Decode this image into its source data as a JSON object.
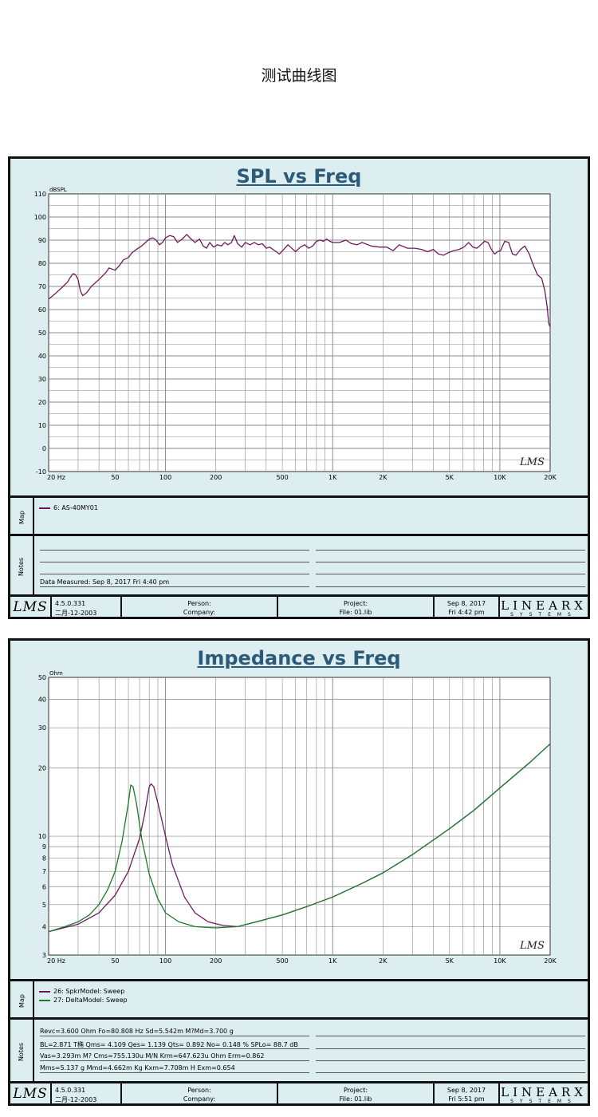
{
  "page_title": "测试曲线图",
  "colors": {
    "panel_bg": "#dceeef",
    "plot_bg": "#ffffff",
    "grid": "#8a8a8a",
    "title": "#2e5a7a",
    "purple": "#6d1a5c",
    "green": "#1a7a2a"
  },
  "spl": {
    "map_label": "Map",
    "notes_label": "Notes",
    "map_entries": [
      {
        "label": "6: AS-40MY01",
        "color": "#6d1a5c"
      }
    ],
    "notes": [
      "Data Measured: Sep  8, 2017  Fri  4:40 pm"
    ],
    "footer": {
      "version": "4.5.0.331",
      "date": "二月-12-2003",
      "person": "Person:",
      "company": "Company:",
      "project": "Project:",
      "file": "File: 01.lib",
      "datetime1": "Sep  8, 2017",
      "datetime2": "Fri  4:42 pm",
      "logo": "LMS",
      "brand": "LINEARX",
      "brand_sub": "SYSTEMS"
    }
  },
  "imp": {
    "map_label": "Map",
    "notes_label": "Notes",
    "map_entries": [
      {
        "label": "26: SpkrModel: Sweep",
        "color": "#6d1a5c"
      },
      {
        "label": "27: DeltaModel: Sweep",
        "color": "#1a7a2a"
      }
    ],
    "notes": [
      "Revc=3.600 Ohm  Fo=80.808 Hz  Sd=5.542m M?Md=3.700 g",
      "BL=2.871 T椭  Qms= 4.109  Qes= 1.139  Qts= 0.892  No= 0.148 %  SPLo= 88.7 dB",
      "Vas=3.293m M? Cms=755.130u M/N  Krm=647.623u Ohm  Erm=0.862",
      "Mms=5.137 g  Mmd=4.662m Kg  Kxm=7.708m H  Exm=0.654"
    ],
    "footer": {
      "version": "4.5.0.331",
      "date": "二月-12-2003",
      "person": "Person:",
      "company": "Company:",
      "project": "Project:",
      "file": "File: 01.lib",
      "datetime1": "Sep  8, 2017",
      "datetime2": "Fri  5:51 pm",
      "logo": "LMS",
      "brand": "LINEARX",
      "brand_sub": "SYSTEMS"
    }
  },
  "chart_data": [
    {
      "type": "line",
      "title": "SPL vs Freq",
      "ylabel": "dBSPL",
      "xscale": "log",
      "xlim": [
        20,
        20000
      ],
      "ylim": [
        -10,
        110
      ],
      "x_ticks": [
        {
          "v": 20,
          "t": "20  Hz"
        },
        {
          "v": 50,
          "t": "50"
        },
        {
          "v": 100,
          "t": "100"
        },
        {
          "v": 200,
          "t": "200"
        },
        {
          "v": 500,
          "t": "500"
        },
        {
          "v": 1000,
          "t": "1K"
        },
        {
          "v": 2000,
          "t": "2K"
        },
        {
          "v": 5000,
          "t": "5K"
        },
        {
          "v": 10000,
          "t": "10K"
        },
        {
          "v": 20000,
          "t": "20K"
        }
      ],
      "y_ticks": [
        -10,
        0,
        10,
        20,
        30,
        40,
        50,
        60,
        70,
        80,
        90,
        100,
        110
      ],
      "watermark": "LMS",
      "grid": true,
      "series": [
        {
          "color": "#6d1a5c",
          "points": [
            [
              20,
              64.5
            ],
            [
              22,
              67
            ],
            [
              24,
              69.5
            ],
            [
              26,
              72
            ],
            [
              27,
              74
            ],
            [
              28,
              75.5
            ],
            [
              29,
              75
            ],
            [
              30,
              73
            ],
            [
              31,
              68
            ],
            [
              32,
              66
            ],
            [
              34,
              67.5
            ],
            [
              36,
              70
            ],
            [
              40,
              73
            ],
            [
              44,
              76
            ],
            [
              46,
              78
            ],
            [
              48,
              77.5
            ],
            [
              50,
              77
            ],
            [
              53,
              79
            ],
            [
              56,
              81.5
            ],
            [
              60,
              82.5
            ],
            [
              63,
              84.5
            ],
            [
              67,
              86
            ],
            [
              72,
              87.5
            ],
            [
              76,
              89
            ],
            [
              80,
              90.5
            ],
            [
              84,
              91
            ],
            [
              88,
              90
            ],
            [
              92,
              88
            ],
            [
              96,
              89
            ],
            [
              100,
              91
            ],
            [
              106,
              92
            ],
            [
              112,
              91.5
            ],
            [
              118,
              89
            ],
            [
              126,
              90.5
            ],
            [
              134,
              92.5
            ],
            [
              140,
              91
            ],
            [
              150,
              89
            ],
            [
              160,
              90.5
            ],
            [
              168,
              87.5
            ],
            [
              176,
              86.5
            ],
            [
              184,
              89
            ],
            [
              194,
              87
            ],
            [
              204,
              88
            ],
            [
              216,
              87.5
            ],
            [
              226,
              89
            ],
            [
              236,
              88
            ],
            [
              248,
              89
            ],
            [
              258,
              92
            ],
            [
              270,
              88.5
            ],
            [
              286,
              87
            ],
            [
              300,
              89
            ],
            [
              320,
              88
            ],
            [
              340,
              89
            ],
            [
              360,
              88
            ],
            [
              380,
              88.5
            ],
            [
              400,
              86.5
            ],
            [
              420,
              87
            ],
            [
              450,
              85.5
            ],
            [
              480,
              84
            ],
            [
              510,
              86
            ],
            [
              540,
              88
            ],
            [
              560,
              87
            ],
            [
              600,
              85
            ],
            [
              640,
              87
            ],
            [
              680,
              88
            ],
            [
              720,
              86.5
            ],
            [
              760,
              87.5
            ],
            [
              800,
              89.5
            ],
            [
              840,
              90
            ],
            [
              880,
              89.5
            ],
            [
              920,
              90.5
            ],
            [
              960,
              89.5
            ],
            [
              1000,
              89
            ],
            [
              1100,
              89
            ],
            [
              1200,
              90
            ],
            [
              1300,
              88.5
            ],
            [
              1400,
              88
            ],
            [
              1500,
              89
            ],
            [
              1700,
              87.5
            ],
            [
              1900,
              87
            ],
            [
              2100,
              87
            ],
            [
              2300,
              85.5
            ],
            [
              2500,
              88
            ],
            [
              2800,
              86.5
            ],
            [
              3100,
              86.5
            ],
            [
              3400,
              86
            ],
            [
              3700,
              85
            ],
            [
              4000,
              86
            ],
            [
              4300,
              84
            ],
            [
              4600,
              83.5
            ],
            [
              4900,
              84.5
            ],
            [
              5300,
              85.5
            ],
            [
              5700,
              86
            ],
            [
              6100,
              87
            ],
            [
              6500,
              89
            ],
            [
              6900,
              87
            ],
            [
              7300,
              86.5
            ],
            [
              7700,
              88
            ],
            [
              8100,
              89.5
            ],
            [
              8500,
              89
            ],
            [
              8900,
              86
            ],
            [
              9300,
              84
            ],
            [
              9700,
              85
            ],
            [
              10100,
              85.5
            ],
            [
              10700,
              89.5
            ],
            [
              11300,
              89
            ],
            [
              11900,
              84
            ],
            [
              12500,
              83.5
            ],
            [
              13300,
              86
            ],
            [
              14100,
              87.5
            ],
            [
              15000,
              84
            ],
            [
              15900,
              79
            ],
            [
              16800,
              75
            ],
            [
              17800,
              73.5
            ],
            [
              18600,
              68
            ],
            [
              19200,
              61
            ],
            [
              19600,
              54
            ],
            [
              20000,
              52.5
            ]
          ]
        }
      ]
    },
    {
      "type": "line",
      "title": "Impedance vs Freq",
      "ylabel": "Ohm",
      "xscale": "log",
      "yscale": "log",
      "xlim": [
        20,
        20000
      ],
      "ylim": [
        3,
        50
      ],
      "x_ticks": [
        {
          "v": 20,
          "t": "20  Hz"
        },
        {
          "v": 50,
          "t": "50"
        },
        {
          "v": 100,
          "t": "100"
        },
        {
          "v": 200,
          "t": "200"
        },
        {
          "v": 500,
          "t": "500"
        },
        {
          "v": 1000,
          "t": "1K"
        },
        {
          "v": 2000,
          "t": "2K"
        },
        {
          "v": 5000,
          "t": "5K"
        },
        {
          "v": 10000,
          "t": "10K"
        },
        {
          "v": 20000,
          "t": "20K"
        }
      ],
      "y_ticks": [
        3,
        4,
        5,
        6,
        7,
        8,
        9,
        10,
        20,
        30,
        40,
        50
      ],
      "watermark": "LMS",
      "grid": true,
      "series": [
        {
          "name": "26: SpkrModel: Sweep",
          "color": "#6d1a5c",
          "points": [
            [
              20,
              3.8
            ],
            [
              30,
              4.1
            ],
            [
              40,
              4.6
            ],
            [
              50,
              5.5
            ],
            [
              60,
              7.0
            ],
            [
              70,
              9.8
            ],
            [
              75,
              12.5
            ],
            [
              80,
              16.5
            ],
            [
              82,
              17.0
            ],
            [
              85,
              16.5
            ],
            [
              90,
              14.0
            ],
            [
              100,
              10.0
            ],
            [
              110,
              7.5
            ],
            [
              130,
              5.4
            ],
            [
              150,
              4.6
            ],
            [
              180,
              4.2
            ],
            [
              220,
              4.05
            ],
            [
              270,
              4.0
            ],
            [
              350,
              4.2
            ],
            [
              500,
              4.5
            ],
            [
              700,
              4.9
            ],
            [
              1000,
              5.4
            ],
            [
              1500,
              6.2
            ],
            [
              2000,
              6.9
            ],
            [
              3000,
              8.3
            ],
            [
              5000,
              10.8
            ],
            [
              7000,
              13.0
            ],
            [
              10000,
              16.3
            ],
            [
              15000,
              21.0
            ],
            [
              20000,
              25.5
            ]
          ]
        },
        {
          "name": "27: DeltaModel: Sweep",
          "color": "#1a7a2a",
          "points": [
            [
              20,
              3.8
            ],
            [
              25,
              4.0
            ],
            [
              30,
              4.2
            ],
            [
              35,
              4.5
            ],
            [
              40,
              5.0
            ],
            [
              45,
              5.8
            ],
            [
              50,
              7.0
            ],
            [
              55,
              9.5
            ],
            [
              60,
              14.0
            ],
            [
              62,
              16.8
            ],
            [
              64,
              16.5
            ],
            [
              67,
              14.0
            ],
            [
              72,
              9.8
            ],
            [
              80,
              6.8
            ],
            [
              90,
              5.3
            ],
            [
              100,
              4.6
            ],
            [
              120,
              4.2
            ],
            [
              150,
              4.0
            ],
            [
              200,
              3.95
            ],
            [
              270,
              4.0
            ],
            [
              350,
              4.2
            ],
            [
              500,
              4.5
            ],
            [
              700,
              4.9
            ],
            [
              1000,
              5.4
            ],
            [
              1500,
              6.2
            ],
            [
              2000,
              6.9
            ],
            [
              3000,
              8.3
            ],
            [
              5000,
              10.8
            ],
            [
              7000,
              13.0
            ],
            [
              10000,
              16.3
            ],
            [
              15000,
              21.0
            ],
            [
              20000,
              25.5
            ]
          ]
        }
      ]
    }
  ]
}
